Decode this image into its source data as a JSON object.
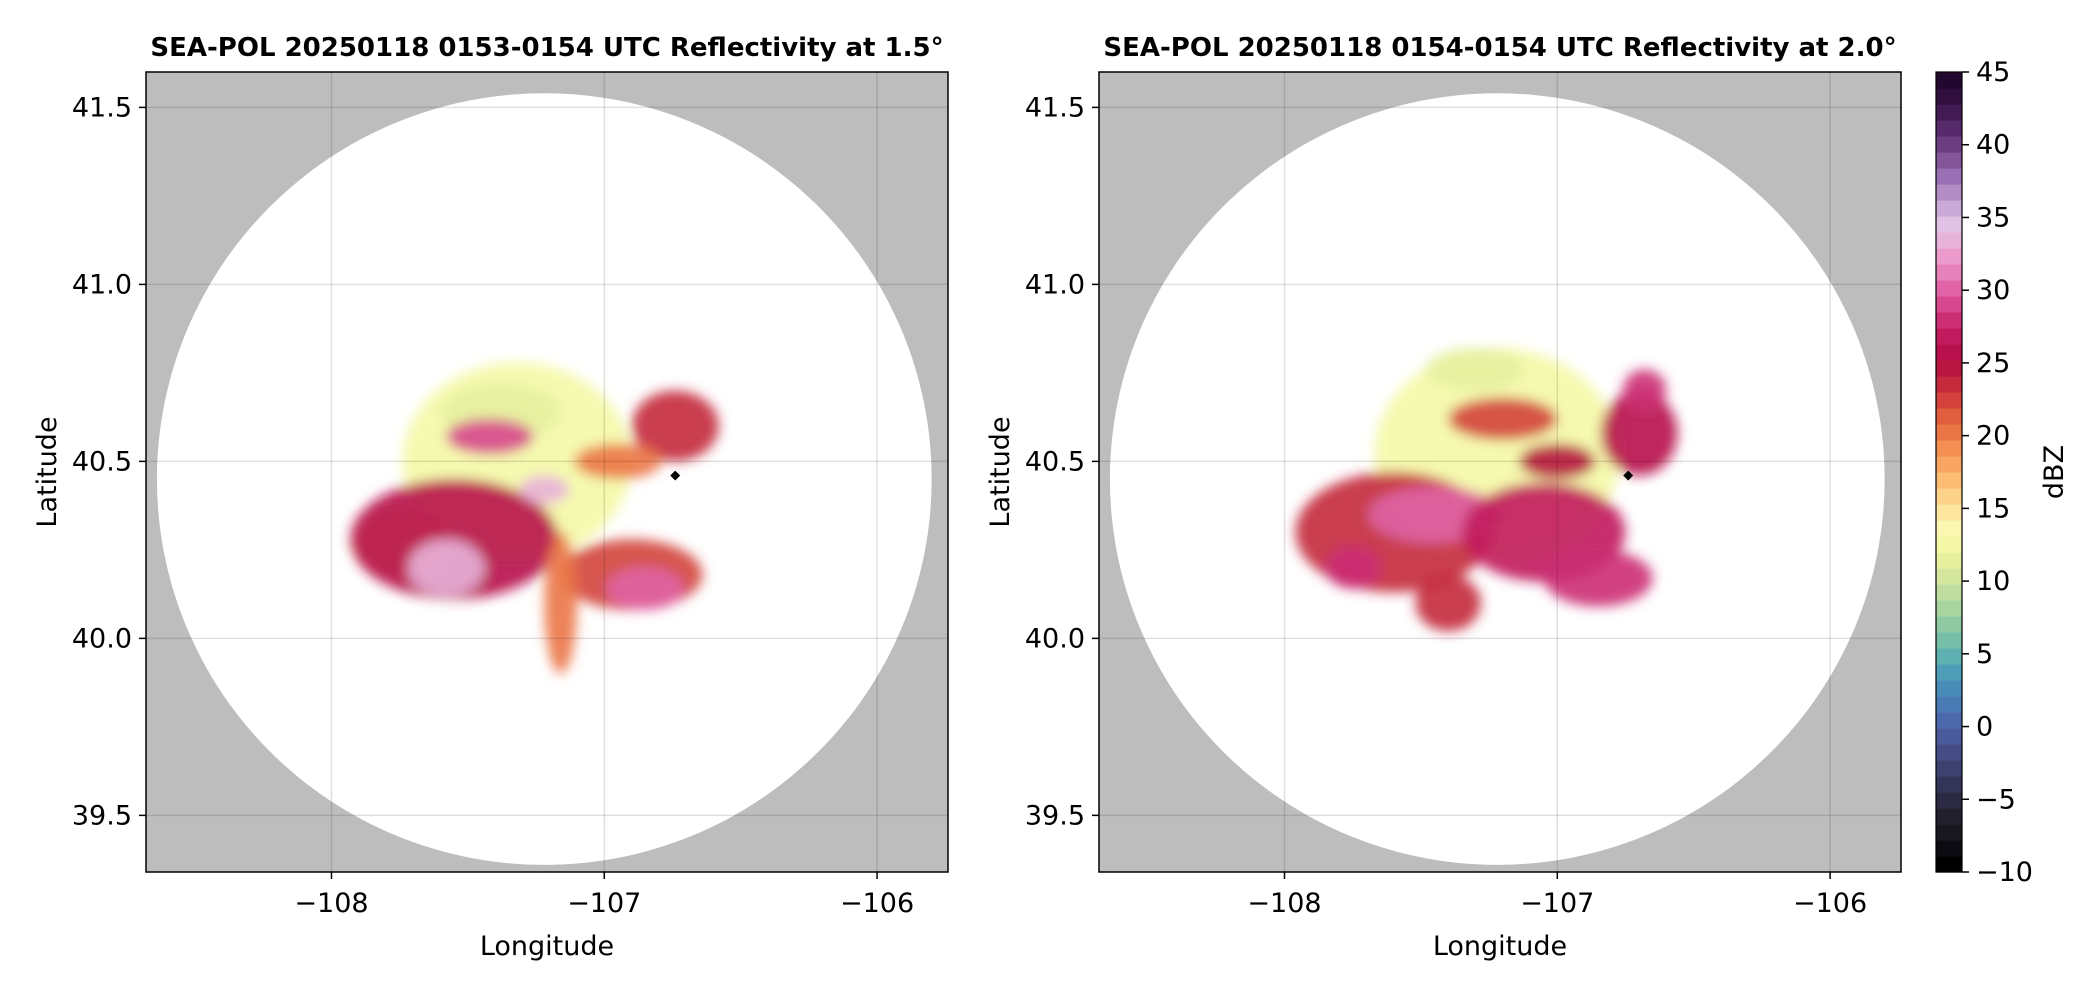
{
  "chart_data": [
    {
      "type": "heatmap",
      "title": "SEA-POL 20250118 0153-0154 UTC Reflectivity at 1.5°",
      "xlabel": "Longitude",
      "ylabel": "Latitude",
      "xlim": [
        -108.68,
        -105.74
      ],
      "ylim": [
        39.34,
        41.6
      ],
      "xticks": [
        -108,
        -107,
        -106
      ],
      "xtick_labels": [
        "−108",
        "−107",
        "−106"
      ],
      "yticks": [
        39.5,
        40.0,
        40.5,
        41.0,
        41.5
      ],
      "ytick_labels": [
        "39.5",
        "40.0",
        "40.5",
        "41.0",
        "41.5"
      ],
      "grid": true,
      "background_color": "#bdbdbd",
      "radar": {
        "center": [
          -107.22,
          40.45
        ],
        "range_lon": 1.42,
        "range_lat": 1.09
      },
      "marker": {
        "lon": -106.74,
        "lat": 40.46,
        "color": "#000000"
      },
      "echo_blobs": [
        {
          "lon": -107.32,
          "lat": 40.5,
          "rlon": 0.42,
          "rlat": 0.28,
          "value": 12
        },
        {
          "lon": -107.38,
          "lat": 40.64,
          "rlon": 0.22,
          "rlat": 0.08,
          "value": 11
        },
        {
          "lon": -107.75,
          "lat": 40.27,
          "rlon": 0.18,
          "rlat": 0.1,
          "value": 17
        },
        {
          "lon": -107.55,
          "lat": 40.28,
          "rlon": 0.38,
          "rlat": 0.17,
          "value": 26
        },
        {
          "lon": -107.58,
          "lat": 40.2,
          "rlon": 0.14,
          "rlat": 0.08,
          "value": 33
        },
        {
          "lon": -107.22,
          "lat": 40.42,
          "rlon": 0.09,
          "rlat": 0.04,
          "value": 33
        },
        {
          "lon": -107.42,
          "lat": 40.57,
          "rlon": 0.16,
          "rlat": 0.05,
          "value": 29
        },
        {
          "lon": -106.9,
          "lat": 40.18,
          "rlon": 0.26,
          "rlat": 0.1,
          "value": 22
        },
        {
          "lon": -106.85,
          "lat": 40.14,
          "rlon": 0.14,
          "rlat": 0.06,
          "value": 30
        },
        {
          "lon": -107.16,
          "lat": 40.1,
          "rlon": 0.06,
          "rlat": 0.2,
          "value": 20
        },
        {
          "lon": -106.74,
          "lat": 40.6,
          "rlon": 0.16,
          "rlat": 0.1,
          "value": 24
        },
        {
          "lon": -106.95,
          "lat": 40.5,
          "rlon": 0.16,
          "rlat": 0.05,
          "value": 20
        }
      ]
    },
    {
      "type": "heatmap",
      "title": "SEA-POL 20250118 0154-0154 UTC Reflectivity at 2.0°",
      "xlabel": "Longitude",
      "ylabel": "Latitude",
      "xlim": [
        -108.68,
        -105.74
      ],
      "ylim": [
        39.34,
        41.6
      ],
      "xticks": [
        -108,
        -107,
        -106
      ],
      "xtick_labels": [
        "−108",
        "−107",
        "−106"
      ],
      "yticks": [
        39.5,
        40.0,
        40.5,
        41.0,
        41.5
      ],
      "ytick_labels": [
        "39.5",
        "40.0",
        "40.5",
        "41.0",
        "41.5"
      ],
      "grid": true,
      "background_color": "#bdbdbd",
      "radar": {
        "center": [
          -107.22,
          40.45
        ],
        "range_lon": 1.42,
        "range_lat": 1.09
      },
      "marker": {
        "lon": -106.74,
        "lat": 40.46,
        "color": "#000000"
      },
      "echo_blobs": [
        {
          "lon": -107.22,
          "lat": 40.52,
          "rlon": 0.45,
          "rlat": 0.3,
          "value": 12
        },
        {
          "lon": -107.3,
          "lat": 40.76,
          "rlon": 0.18,
          "rlat": 0.06,
          "value": 11
        },
        {
          "lon": -107.6,
          "lat": 40.3,
          "rlon": 0.36,
          "rlat": 0.17,
          "value": 24
        },
        {
          "lon": -107.45,
          "lat": 40.35,
          "rlon": 0.24,
          "rlat": 0.08,
          "value": 30
        },
        {
          "lon": -107.75,
          "lat": 40.2,
          "rlon": 0.1,
          "rlat": 0.06,
          "value": 28
        },
        {
          "lon": -107.05,
          "lat": 40.3,
          "rlon": 0.3,
          "rlat": 0.14,
          "value": 27
        },
        {
          "lon": -106.85,
          "lat": 40.17,
          "rlon": 0.2,
          "rlat": 0.08,
          "value": 28
        },
        {
          "lon": -107.4,
          "lat": 40.1,
          "rlon": 0.12,
          "rlat": 0.08,
          "value": 24
        },
        {
          "lon": -107.2,
          "lat": 40.62,
          "rlon": 0.2,
          "rlat": 0.06,
          "value": 22
        },
        {
          "lon": -107.0,
          "lat": 40.5,
          "rlon": 0.14,
          "rlat": 0.05,
          "value": 25
        },
        {
          "lon": -106.7,
          "lat": 40.58,
          "rlon": 0.14,
          "rlat": 0.12,
          "value": 26
        },
        {
          "lon": -106.68,
          "lat": 40.7,
          "rlon": 0.08,
          "rlat": 0.06,
          "value": 28
        }
      ]
    }
  ],
  "colorbar": {
    "label": "dBZ",
    "min": -10,
    "max": 45,
    "ticks": [
      -10,
      -5,
      0,
      5,
      10,
      15,
      20,
      25,
      30,
      35,
      40,
      45
    ],
    "tick_labels": [
      "−10",
      "−5",
      "0",
      "5",
      "10",
      "15",
      "20",
      "25",
      "30",
      "35",
      "40",
      "45"
    ],
    "colors": [
      "#000000",
      "#0d0b12",
      "#18161f",
      "#23202e",
      "#2b2a42",
      "#333558",
      "#3d4170",
      "#464c86",
      "#4a5a9a",
      "#4c6aab",
      "#4a7bb4",
      "#4a8cb8",
      "#4f9eb8",
      "#5fb0b0",
      "#76bea7",
      "#8fc9a3",
      "#a8d4a0",
      "#bfdd9e",
      "#d5e79e",
      "#e6f19f",
      "#f4f8a6",
      "#fbf6b2",
      "#fde7a0",
      "#fdd38a",
      "#fdbd74",
      "#f9a662",
      "#f38f52",
      "#eb7645",
      "#e05d3e",
      "#d3423c",
      "#c42a3c",
      "#b6163f",
      "#b7104b",
      "#c11a5d",
      "#cc2e74",
      "#d7478d",
      "#e064a6",
      "#e781ba",
      "#ea9bcb",
      "#e8b3d9",
      "#e0c2e4",
      "#c9a9d6",
      "#b28cc4",
      "#9b6fb3",
      "#845599",
      "#6d3d82",
      "#572a6b",
      "#421a54",
      "#300f3f",
      "#22082e"
    ]
  }
}
